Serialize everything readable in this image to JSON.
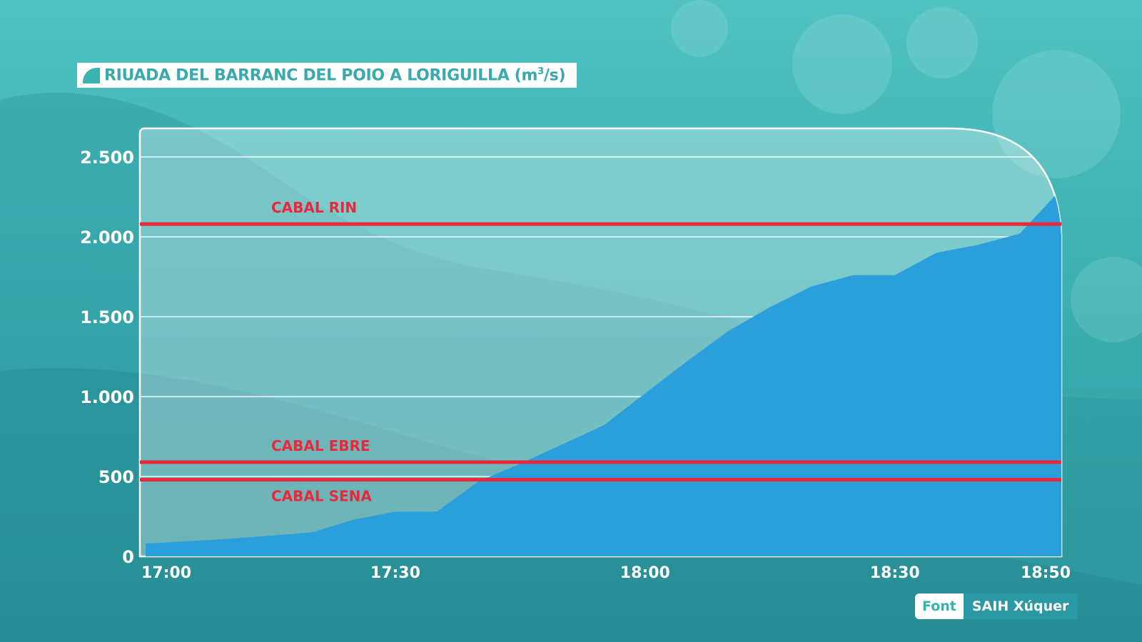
{
  "title": {
    "text": "RIUADA DEL BARRANC DEL POIO A LORIGUILLA (m",
    "superscript": "3",
    "suffix": "/s)"
  },
  "source": {
    "label": "Font",
    "value": "SAIH Xúquer"
  },
  "colors": {
    "area_fill": "#2a9fdc",
    "reference_line": "#e8293c",
    "title_text": "#3aa9ac",
    "background": "#3aaeb0"
  },
  "chart_data": {
    "type": "area",
    "title": "RIUADA DEL BARRANC DEL POIO A LORIGUILLA (m3/s)",
    "xlabel": "",
    "ylabel": "",
    "x_range_minutes": [
      0,
      110
    ],
    "ylim": [
      0,
      2500
    ],
    "grid": true,
    "y_ticks": [
      0,
      500,
      1000,
      1500,
      2000,
      2500
    ],
    "y_tick_labels": [
      "0",
      "500",
      "1.000",
      "1.500",
      "2.000",
      "2.500"
    ],
    "x_ticks": [
      0,
      30,
      60,
      90,
      110
    ],
    "x_tick_labels": [
      "17:00",
      "17:30",
      "18:00",
      "18:30",
      "18:50"
    ],
    "series": [
      {
        "x": [
          "17:00",
          "17:10",
          "17:20",
          "17:25",
          "17:30",
          "17:35",
          "17:40",
          "17:45",
          "17:50",
          "17:55",
          "18:00",
          "18:05",
          "18:10",
          "18:15",
          "18:20",
          "18:25",
          "18:30",
          "18:35",
          "18:40",
          "18:45",
          "18:50"
        ],
        "values": [
          80,
          110,
          150,
          230,
          280,
          280,
          470,
          580,
          700,
          820,
          1020,
          1220,
          1410,
          1560,
          1690,
          1760,
          1760,
          1900,
          1950,
          2020,
          2300
        ]
      }
    ],
    "reference_lines": [
      {
        "label": "CABAL RIN",
        "value": 2080
      },
      {
        "label": "CABAL EBRE",
        "value": 590
      },
      {
        "label": "CABAL SENA",
        "value": 480
      }
    ]
  }
}
